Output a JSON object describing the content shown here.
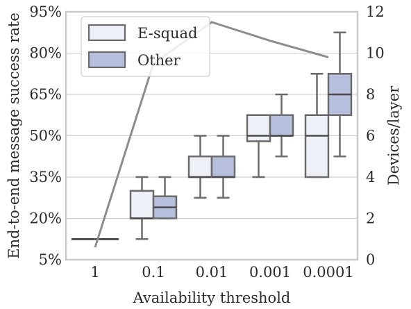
{
  "chart_data": {
    "type": "box",
    "title": "",
    "xlabel": "Availability threshold",
    "ylabel_left": "End-to-end message success rate",
    "ylabel_right": "Devices/layer",
    "categories": [
      "1",
      "0.1",
      "0.01",
      "0.001",
      "0.0001"
    ],
    "y_left": {
      "ylim": [
        5,
        95
      ],
      "ticks": [
        5,
        20,
        35,
        50,
        65,
        80,
        95
      ],
      "tick_labels": [
        "5%",
        "20%",
        "35%",
        "50%",
        "65%",
        "80%",
        "95%"
      ]
    },
    "y_right": {
      "ylim": [
        0,
        12
      ],
      "ticks": [
        0,
        2,
        4,
        6,
        8,
        10,
        12
      ],
      "tick_labels": [
        "0",
        "2",
        "4",
        "6",
        "8",
        "10",
        "12"
      ]
    },
    "grid": "horizontal",
    "legend": {
      "placement": "top-left",
      "entries": [
        "E-squad",
        "Other"
      ]
    },
    "series": [
      {
        "name": "E-squad",
        "color": "#eef0f8",
        "boxes": [
          {
            "whislo": 12.5,
            "q1": 12.5,
            "med": 12.5,
            "q3": 12.5,
            "whishi": 12.5
          },
          {
            "whislo": 12.5,
            "q1": 20,
            "med": 20,
            "q3": 30,
            "whishi": 35
          },
          {
            "whislo": 27.5,
            "q1": 35,
            "med": 35,
            "q3": 42.5,
            "whishi": 50
          },
          {
            "whislo": 35,
            "q1": 48,
            "med": 50,
            "q3": 57.5,
            "whishi": 57.5
          },
          {
            "whislo": 35,
            "q1": 35,
            "med": 50,
            "q3": 57.5,
            "whishi": 72.5
          }
        ]
      },
      {
        "name": "Other",
        "color": "#b7bfdc",
        "boxes": [
          {
            "whislo": 12.5,
            "q1": 12.5,
            "med": 12.5,
            "q3": 12.5,
            "whishi": 12.5
          },
          {
            "whislo": 20,
            "q1": 20,
            "med": 24,
            "q3": 28,
            "whishi": 35
          },
          {
            "whislo": 27.5,
            "q1": 35,
            "med": 35,
            "q3": 42.5,
            "whishi": 50
          },
          {
            "whislo": 42.5,
            "q1": 50,
            "med": 50,
            "q3": 57.5,
            "whishi": 65
          },
          {
            "whislo": 42.5,
            "q1": 57.5,
            "med": 65,
            "q3": 72.5,
            "whishi": 87.5
          }
        ]
      }
    ],
    "line": {
      "axis": "right",
      "values": [
        0.6,
        9.5,
        11.5,
        10.6,
        9.8
      ],
      "color": "#8c8c8c"
    }
  }
}
